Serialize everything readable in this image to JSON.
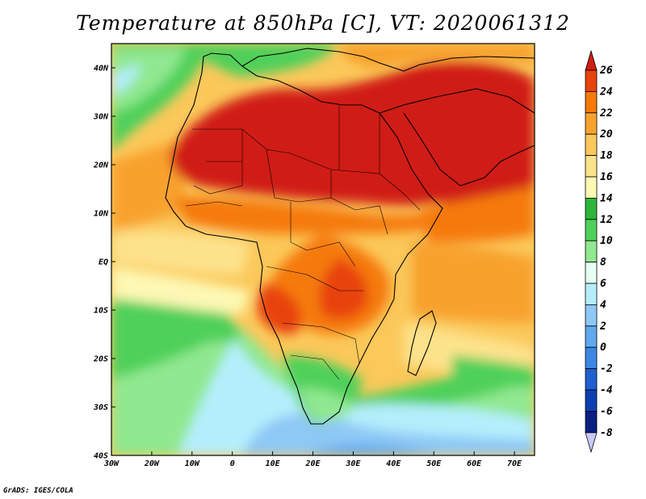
{
  "title": "Temperature at 850hPa [C], VT: 2020061312",
  "credit": "GrADS: IGES/COLA",
  "map": {
    "lon_range": [
      -30,
      75
    ],
    "lat_range": [
      -40,
      45
    ],
    "lon_ticks": [
      {
        "value": -30,
        "label": "30W"
      },
      {
        "value": -20,
        "label": "20W"
      },
      {
        "value": -10,
        "label": "10W"
      },
      {
        "value": 0,
        "label": "0"
      },
      {
        "value": 10,
        "label": "10E"
      },
      {
        "value": 20,
        "label": "20E"
      },
      {
        "value": 30,
        "label": "30E"
      },
      {
        "value": 40,
        "label": "40E"
      },
      {
        "value": 50,
        "label": "50E"
      },
      {
        "value": 60,
        "label": "60E"
      },
      {
        "value": 70,
        "label": "70E"
      }
    ],
    "lat_ticks": [
      {
        "value": 40,
        "label": "40N"
      },
      {
        "value": 30,
        "label": "30N"
      },
      {
        "value": 20,
        "label": "20N"
      },
      {
        "value": 10,
        "label": "10N"
      },
      {
        "value": 0,
        "label": "EQ"
      },
      {
        "value": -10,
        "label": "10S"
      },
      {
        "value": -20,
        "label": "20S"
      },
      {
        "value": -30,
        "label": "30S"
      },
      {
        "value": -40,
        "label": "40S"
      }
    ]
  },
  "colorbar": {
    "labels": [
      "26",
      "24",
      "22",
      "20",
      "18",
      "16",
      "14",
      "12",
      "10",
      "8",
      "6",
      "4",
      "2",
      "0",
      "-2",
      "-4",
      "-6",
      "-8"
    ],
    "colors": [
      "#d01e14",
      "#e8430a",
      "#f57a0a",
      "#f8a22d",
      "#fbc85a",
      "#fde28c",
      "#fdf8b4",
      "#2cb53a",
      "#4fd05a",
      "#90e890",
      "#e6fff3",
      "#b4eefc",
      "#8ec8f5",
      "#5fa8ee",
      "#3c87e4",
      "#1f5fcf",
      "#0d3fb3",
      "#0a1f82",
      "#c8cbff"
    ]
  }
}
